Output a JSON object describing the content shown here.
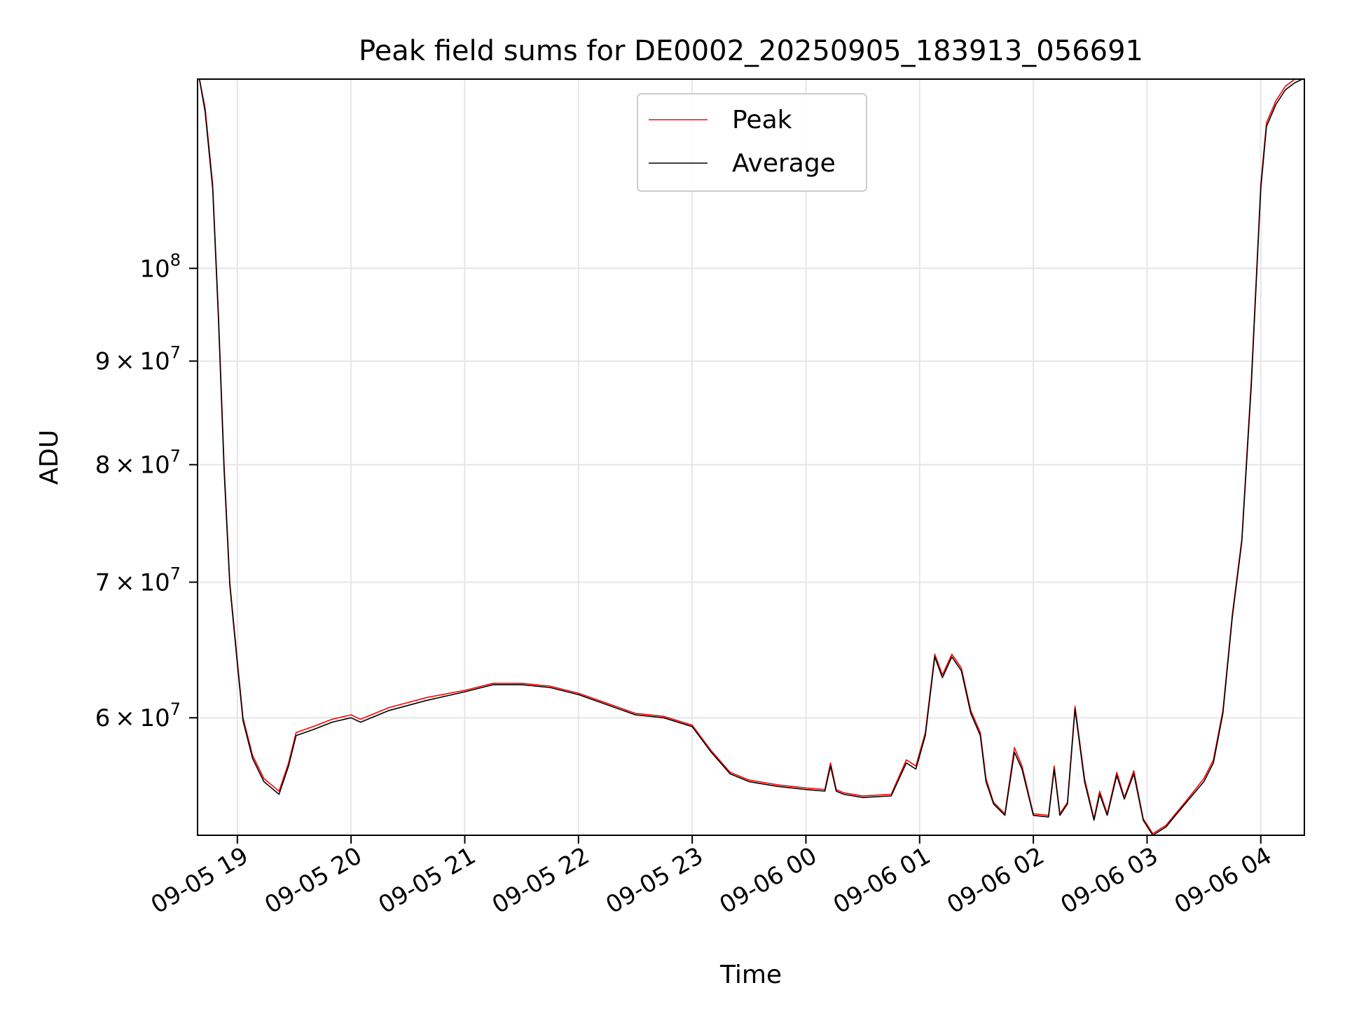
{
  "chart_data": {
    "type": "line",
    "title": "Peak field sums for DE0002_20250905_183913_056691",
    "xlabel": "Time",
    "ylabel": "ADU",
    "yscale": "log",
    "xlim": [
      "2025-09-05 18:39",
      "2025-09-06 04:23"
    ],
    "ylim": [
      52500000.0,
      124000000.0
    ],
    "grid": true,
    "legend": "upper center",
    "x_ticks": [
      {
        "value": "2025-09-05 19:00",
        "label": "09-05 19"
      },
      {
        "value": "2025-09-05 20:00",
        "label": "09-05 20"
      },
      {
        "value": "2025-09-05 21:00",
        "label": "09-05 21"
      },
      {
        "value": "2025-09-05 22:00",
        "label": "09-05 22"
      },
      {
        "value": "2025-09-05 23:00",
        "label": "09-05 23"
      },
      {
        "value": "2025-09-06 00:00",
        "label": "09-06 00"
      },
      {
        "value": "2025-09-06 01:00",
        "label": "09-06 01"
      },
      {
        "value": "2025-09-06 02:00",
        "label": "09-06 02"
      },
      {
        "value": "2025-09-06 03:00",
        "label": "09-06 03"
      },
      {
        "value": "2025-09-06 04:00",
        "label": "09-06 04"
      }
    ],
    "y_ticks": [
      {
        "value": 60000000,
        "mantissa": "6",
        "exponent": "7"
      },
      {
        "value": 70000000,
        "mantissa": "7",
        "exponent": "7"
      },
      {
        "value": 80000000,
        "mantissa": "8",
        "exponent": "7"
      },
      {
        "value": 90000000,
        "mantissa": "9",
        "exponent": "7"
      },
      {
        "value": 100000000,
        "mantissa": "",
        "exponent": "8"
      }
    ],
    "series": [
      {
        "name": "Peak",
        "color": "#ff0000",
        "x": [
          "2025-09-05 18:40",
          "2025-09-05 18:43",
          "2025-09-05 18:47",
          "2025-09-05 18:50",
          "2025-09-05 18:53",
          "2025-09-05 18:56",
          "2025-09-05 19:00",
          "2025-09-05 19:03",
          "2025-09-05 19:08",
          "2025-09-05 19:14",
          "2025-09-05 19:22",
          "2025-09-05 19:27",
          "2025-09-05 19:31",
          "2025-09-05 19:40",
          "2025-09-05 19:50",
          "2025-09-05 20:00",
          "2025-09-05 20:05",
          "2025-09-05 20:20",
          "2025-09-05 20:40",
          "2025-09-05 21:00",
          "2025-09-05 21:15",
          "2025-09-05 21:30",
          "2025-09-05 21:45",
          "2025-09-05 22:00",
          "2025-09-05 22:15",
          "2025-09-05 22:30",
          "2025-09-05 22:45",
          "2025-09-05 23:00",
          "2025-09-05 23:10",
          "2025-09-05 23:20",
          "2025-09-05 23:30",
          "2025-09-05 23:45",
          "2025-09-06 00:00",
          "2025-09-06 00:10",
          "2025-09-06 00:13",
          "2025-09-06 00:16",
          "2025-09-06 00:20",
          "2025-09-06 00:30",
          "2025-09-06 00:45",
          "2025-09-06 00:53",
          "2025-09-06 00:58",
          "2025-09-06 01:03",
          "2025-09-06 01:08",
          "2025-09-06 01:12",
          "2025-09-06 01:17",
          "2025-09-06 01:22",
          "2025-09-06 01:27",
          "2025-09-06 01:32",
          "2025-09-06 01:35",
          "2025-09-06 01:39",
          "2025-09-06 01:45",
          "2025-09-06 01:50",
          "2025-09-06 01:54",
          "2025-09-06 02:00",
          "2025-09-06 02:08",
          "2025-09-06 02:11",
          "2025-09-06 02:14",
          "2025-09-06 02:18",
          "2025-09-06 02:22",
          "2025-09-06 02:27",
          "2025-09-06 02:32",
          "2025-09-06 02:35",
          "2025-09-06 02:39",
          "2025-09-06 02:44",
          "2025-09-06 02:48",
          "2025-09-06 02:53",
          "2025-09-06 02:58",
          "2025-09-06 03:03",
          "2025-09-06 03:10",
          "2025-09-06 03:15",
          "2025-09-06 03:20",
          "2025-09-06 03:30",
          "2025-09-06 03:35",
          "2025-09-06 03:40",
          "2025-09-06 03:45",
          "2025-09-06 03:50",
          "2025-09-06 03:55",
          "2025-09-06 04:00",
          "2025-09-06 04:03",
          "2025-09-06 04:08",
          "2025-09-06 04:13",
          "2025-09-06 04:18",
          "2025-09-06 04:22"
        ],
        "y": [
          124000000,
          120000000,
          110000000,
          95000000,
          80000000,
          70000000,
          64000000,
          60000000,
          57500000,
          56000000,
          55200000,
          57000000,
          59000000,
          59400000,
          59900000,
          60200000,
          59900000,
          60700000,
          61400000,
          61900000,
          62400000,
          62400000,
          62200000,
          61700000,
          61000000,
          60300000,
          60100000,
          59500000,
          57800000,
          56400000,
          55900000,
          55600000,
          55400000,
          55300000,
          57000000,
          55300000,
          55100000,
          54900000,
          55000000,
          57200000,
          56800000,
          59000000,
          64500000,
          63000000,
          64500000,
          63500000,
          60500000,
          59000000,
          56000000,
          54500000,
          53800000,
          58000000,
          56800000,
          53800000,
          53700000,
          56800000,
          53800000,
          54500000,
          60800000,
          56000000,
          53500000,
          55200000,
          53800000,
          56400000,
          54800000,
          56500000,
          53500000,
          52600000,
          53100000,
          53800000,
          54500000,
          56000000,
          57200000,
          60500000,
          67500000,
          73500000,
          88000000,
          110000000,
          118000000,
          121000000,
          123000000,
          124000000,
          124500000
        ]
      },
      {
        "name": "Average",
        "color": "#000000",
        "x": [
          "2025-09-05 18:40",
          "2025-09-05 18:43",
          "2025-09-05 18:47",
          "2025-09-05 18:50",
          "2025-09-05 18:53",
          "2025-09-05 18:56",
          "2025-09-05 19:00",
          "2025-09-05 19:03",
          "2025-09-05 19:08",
          "2025-09-05 19:14",
          "2025-09-05 19:22",
          "2025-09-05 19:27",
          "2025-09-05 19:31",
          "2025-09-05 19:40",
          "2025-09-05 19:50",
          "2025-09-05 20:00",
          "2025-09-05 20:05",
          "2025-09-05 20:20",
          "2025-09-05 20:40",
          "2025-09-05 21:00",
          "2025-09-05 21:15",
          "2025-09-05 21:30",
          "2025-09-05 21:45",
          "2025-09-05 22:00",
          "2025-09-05 22:15",
          "2025-09-05 22:30",
          "2025-09-05 22:45",
          "2025-09-05 23:00",
          "2025-09-05 23:10",
          "2025-09-05 23:20",
          "2025-09-05 23:30",
          "2025-09-05 23:45",
          "2025-09-06 00:00",
          "2025-09-06 00:10",
          "2025-09-06 00:13",
          "2025-09-06 00:16",
          "2025-09-06 00:20",
          "2025-09-06 00:30",
          "2025-09-06 00:45",
          "2025-09-06 00:53",
          "2025-09-06 00:58",
          "2025-09-06 01:03",
          "2025-09-06 01:08",
          "2025-09-06 01:12",
          "2025-09-06 01:17",
          "2025-09-06 01:22",
          "2025-09-06 01:27",
          "2025-09-06 01:32",
          "2025-09-06 01:35",
          "2025-09-06 01:39",
          "2025-09-06 01:45",
          "2025-09-06 01:50",
          "2025-09-06 01:54",
          "2025-09-06 02:00",
          "2025-09-06 02:08",
          "2025-09-06 02:11",
          "2025-09-06 02:14",
          "2025-09-06 02:18",
          "2025-09-06 02:22",
          "2025-09-06 02:27",
          "2025-09-06 02:32",
          "2025-09-06 02:35",
          "2025-09-06 02:39",
          "2025-09-06 02:44",
          "2025-09-06 02:48",
          "2025-09-06 02:53",
          "2025-09-06 02:58",
          "2025-09-06 03:03",
          "2025-09-06 03:10",
          "2025-09-06 03:15",
          "2025-09-06 03:20",
          "2025-09-06 03:30",
          "2025-09-06 03:35",
          "2025-09-06 03:40",
          "2025-09-06 03:45",
          "2025-09-06 03:50",
          "2025-09-06 03:55",
          "2025-09-06 04:00",
          "2025-09-06 04:03",
          "2025-09-06 04:08",
          "2025-09-06 04:13",
          "2025-09-06 04:18",
          "2025-09-06 04:22"
        ],
        "y": [
          124000000,
          119500000,
          109500000,
          94500000,
          79500000,
          69800000,
          63800000,
          59800000,
          57300000,
          55800000,
          55000000,
          56800000,
          58800000,
          59200000,
          59700000,
          60000000,
          59700000,
          60500000,
          61200000,
          61800000,
          62300000,
          62300000,
          62100000,
          61600000,
          60900000,
          60200000,
          60000000,
          59400000,
          57700000,
          56300000,
          55800000,
          55500000,
          55300000,
          55200000,
          56800000,
          55200000,
          55000000,
          54800000,
          54900000,
          57000000,
          56600000,
          58800000,
          64300000,
          62800000,
          64300000,
          63300000,
          60300000,
          58800000,
          55800000,
          54400000,
          53700000,
          57700000,
          56600000,
          53700000,
          53600000,
          56600000,
          53700000,
          54400000,
          60600000,
          55800000,
          53400000,
          55000000,
          53700000,
          56200000,
          54700000,
          56300000,
          53400000,
          52500000,
          53000000,
          53700000,
          54400000,
          55800000,
          57000000,
          60300000,
          67300000,
          73300000,
          87500000,
          109500000,
          117500000,
          120500000,
          122500000,
          123500000,
          124000000
        ]
      }
    ]
  }
}
